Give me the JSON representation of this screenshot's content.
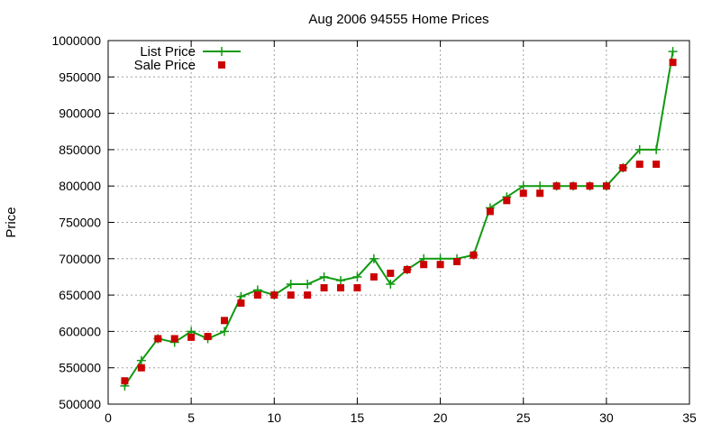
{
  "chart_data": {
    "type": "line",
    "title": "Aug 2006 94555 Home Prices",
    "xlabel": "",
    "ylabel": "Price",
    "xlim": [
      0,
      35
    ],
    "ylim": [
      500000,
      1000000
    ],
    "x_ticks": [
      0,
      5,
      10,
      15,
      20,
      25,
      30,
      35
    ],
    "y_ticks": [
      500000,
      550000,
      600000,
      650000,
      700000,
      750000,
      800000,
      850000,
      900000,
      950000,
      1000000
    ],
    "grid": true,
    "legend_position": "top-left",
    "series": [
      {
        "name": "List Price",
        "style": "line-plus",
        "color": "#109910",
        "x": [
          1,
          2,
          3,
          4,
          5,
          6,
          7,
          8,
          9,
          10,
          11,
          12,
          13,
          14,
          15,
          16,
          17,
          18,
          19,
          20,
          21,
          22,
          23,
          24,
          25,
          26,
          27,
          28,
          29,
          30,
          31,
          32,
          33,
          34
        ],
        "values": [
          525000,
          560000,
          590000,
          585000,
          600000,
          590000,
          600000,
          648000,
          657000,
          650000,
          665000,
          665000,
          675000,
          670000,
          675000,
          700000,
          665000,
          685000,
          700000,
          700000,
          700000,
          705000,
          770000,
          785000,
          800000,
          800000,
          800000,
          800000,
          800000,
          800000,
          825000,
          850000,
          850000,
          985000
        ]
      },
      {
        "name": "Sale Price",
        "style": "square",
        "color": "#cc0000",
        "x": [
          1,
          2,
          3,
          4,
          5,
          6,
          7,
          8,
          9,
          10,
          11,
          12,
          13,
          14,
          15,
          16,
          17,
          18,
          19,
          20,
          21,
          22,
          23,
          24,
          25,
          26,
          27,
          28,
          29,
          30,
          31,
          32,
          33,
          34
        ],
        "values": [
          532000,
          550000,
          590000,
          590000,
          592000,
          593000,
          615000,
          639000,
          650000,
          650000,
          650000,
          650000,
          660000,
          660000,
          660000,
          675000,
          680000,
          685000,
          692000,
          692000,
          696000,
          705000,
          765000,
          780000,
          790000,
          790000,
          800000,
          800000,
          800000,
          800000,
          825000,
          830000,
          830000,
          970000
        ]
      }
    ]
  }
}
